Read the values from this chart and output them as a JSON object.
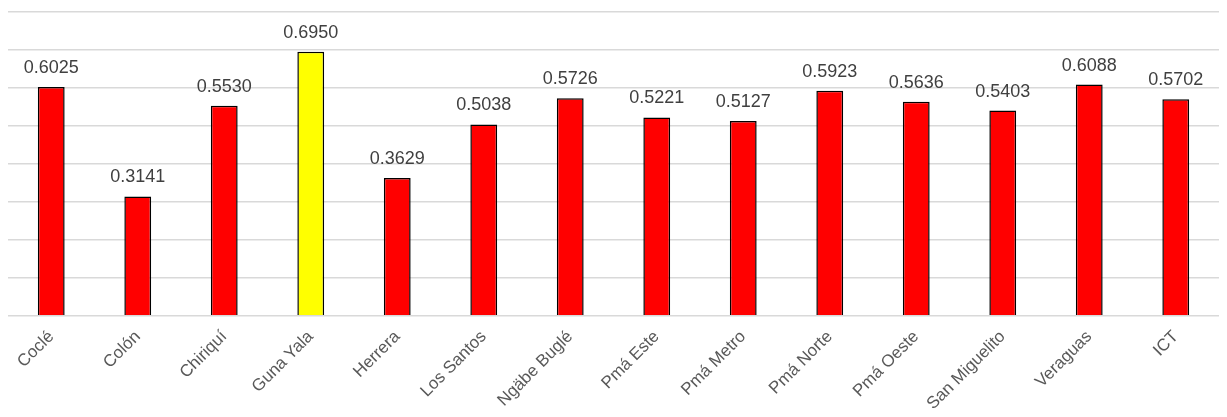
{
  "chart_data": {
    "type": "bar",
    "categories": [
      "Coclé",
      "Colón",
      "Chiriquí",
      "Guna Yala",
      "Herrera",
      "Los Santos",
      "Ngäbe Buglé",
      "Pmá Este",
      "Pmá Metro",
      "Pmá Norte",
      "Pmá Oeste",
      "San Miguelito",
      "Veraguas",
      "ICT"
    ],
    "values": [
      0.6025,
      0.3141,
      0.553,
      0.695,
      0.3629,
      0.5038,
      0.5726,
      0.5221,
      0.5127,
      0.5923,
      0.5636,
      0.5403,
      0.6088,
      0.5702
    ],
    "value_labels": [
      "0.6025",
      "0.3141",
      "0.5530",
      "0.6950",
      "0.3629",
      "0.5038",
      "0.5726",
      "0.5221",
      "0.5127",
      "0.5923",
      "0.5636",
      "0.5403",
      "0.6088",
      "0.5702"
    ],
    "colors": [
      "#ff0000",
      "#ff0000",
      "#ff0000",
      "#ffff00",
      "#ff0000",
      "#ff0000",
      "#ff0000",
      "#ff0000",
      "#ff0000",
      "#ff0000",
      "#ff0000",
      "#ff0000",
      "#ff0000",
      "#ff0000"
    ],
    "ylim": [
      0,
      0.8
    ],
    "tick_labels": "x",
    "grid": "y",
    "legend": false
  }
}
